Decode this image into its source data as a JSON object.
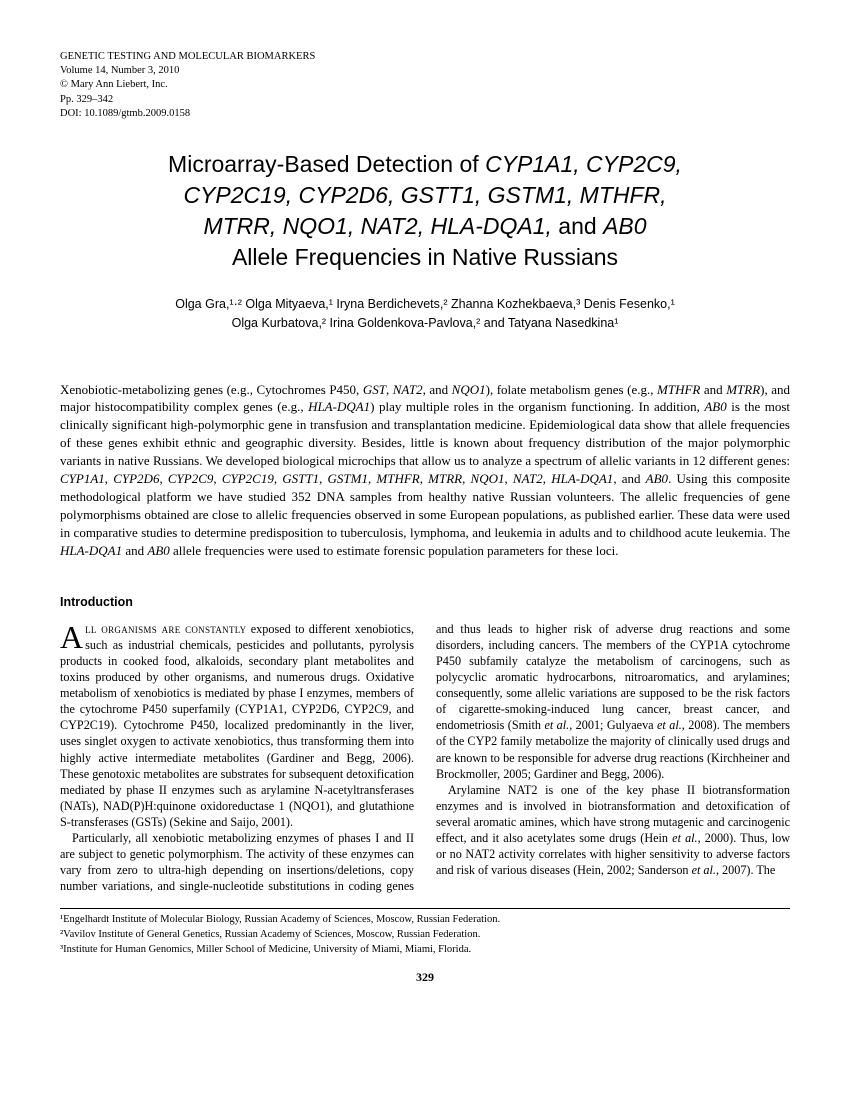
{
  "journal": {
    "name": "GENETIC TESTING AND MOLECULAR BIOMARKERS",
    "volume_line": "Volume 14, Number 3, 2010",
    "copyright_line": "© Mary Ann Liebert, Inc.",
    "pages_line": "Pp. 329–342",
    "doi_line": "DOI: 10.1089/gtmb.2009.0158"
  },
  "title": {
    "prefix": "Microarray-Based Detection of ",
    "genes_line1": "CYP1A1, CYP2C9,",
    "genes_line2": "CYP2C19, CYP2D6, GSTT1, GSTM1, MTHFR,",
    "genes_line3": "MTRR, NQO1, NAT2, HLA-DQA1,",
    "mid": " and ",
    "gene_last": "AB0",
    "suffix": "Allele Frequencies in Native Russians"
  },
  "authors_line1": "Olga Gra,¹·² Olga Mityaeva,¹ Iryna Berdichevets,² Zhanna Kozhekbaeva,³ Denis Fesenko,¹",
  "authors_line2": "Olga Kurbatova,² Irina Goldenkova-Pavlova,² and Tatyana Nasedkina¹",
  "abstract": "Xenobiotic-metabolizing genes (e.g., Cytochromes P450, GST, NAT2, and NQO1), folate metabolism genes (e.g., MTHFR and MTRR), and major histocompatibility complex genes (e.g., HLA-DQA1) play multiple roles in the organism functioning. In addition, AB0 is the most clinically significant high-polymorphic gene in transfusion and transplantation medicine. Epidemiological data show that allele frequencies of these genes exhibit ethnic and geographic diversity. Besides, little is known about frequency distribution of the major polymorphic variants in native Russians. We developed biological microchips that allow us to analyze a spectrum of allelic variants in 12 different genes: CYP1A1, CYP2D6, CYP2C9, CYP2C19, GSTT1, GSTM1, MTHFR, MTRR, NQO1, NAT2, HLA-DQA1, and AB0. Using this composite methodological platform we have studied 352 DNA samples from healthy native Russian volunteers. The allelic frequencies of gene polymorphisms obtained are close to allelic frequencies observed in some European populations, as published earlier. These data were used in comparative studies to determine predisposition to tuberculosis, lymphoma, and leukemia in adults and to childhood acute leukemia. The HLA-DQA1 and AB0 allele frequencies were used to estimate forensic population parameters for these loci.",
  "section_heading": "Introduction",
  "body": {
    "dropcap": "A",
    "p1_smallcaps": "ll organisms are constantly",
    "p1_rest": " exposed to different xenobiotics, such as industrial chemicals, pesticides and pollutants, pyrolysis products in cooked food, alkaloids, secondary plant metabolites and toxins produced by other organisms, and numerous drugs. Oxidative metabolism of xenobiotics is mediated by phase I enzymes, members of the cytochrome P450 superfamily (CYP1A1, CYP2D6, CYP2C9, and CYP2C19). Cytochrome P450, localized predominantly in the liver, uses singlet oxygen to activate xenobiotics, thus transforming them into highly active intermediate metabolites (Gardiner and Begg, 2006). These genotoxic metabolites are substrates for subsequent detoxification mediated by phase II enzymes such as arylamine N-acetyltransferases (NATs), NAD(P)H:quinone oxidoreductase 1 (NQO1), and glutathione S-transferases (GSTs) (Sekine and Saijo, 2001).",
    "p2": "Particularly, all xenobiotic metabolizing enzymes of phases I and II are subject to genetic polymorphism. The activity of these enzymes can vary from zero to ultra-high depending on insertions/deletions, copy number variations, and single-nucleotide substitutions in coding genes and thus leads to higher risk of adverse drug reactions and some disorders, including cancers. The members of the CYP1A cytochrome P450 subfamily catalyze the metabolism of carcinogens, such as polycyclic aromatic hydrocarbons, nitroaromatics, and arylamines; consequently, some allelic variations are supposed to be the risk factors of cigarette-smoking-induced lung cancer, breast cancer, and endometriosis (Smith et al., 2001; Gulyaeva et al., 2008). The members of the CYP2 family metabolize the majority of clinically used drugs and are known to be responsible for adverse drug reactions (Kirchheiner and Brockmoller, 2005; Gardiner and Begg, 2006).",
    "p3": "Arylamine NAT2 is one of the key phase II biotransformation enzymes and is involved in biotransformation and detoxification of several aromatic amines, which have strong mutagenic and carcinogenic effect, and it also acetylates some drugs (Hein et al., 2000). Thus, low or no NAT2 activity correlates with higher sensitivity to adverse factors and risk of various diseases (Hein, 2002; Sanderson et al., 2007). The"
  },
  "affiliations": {
    "a1": "¹Engelhardt Institute of Molecular Biology, Russian Academy of Sciences, Moscow, Russian Federation.",
    "a2": "²Vavilov Institute of General Genetics, Russian Academy of Sciences, Moscow, Russian Federation.",
    "a3": "³Institute for Human Genomics, Miller School of Medicine, University of Miami, Miami, Florida."
  },
  "page_number": "329"
}
